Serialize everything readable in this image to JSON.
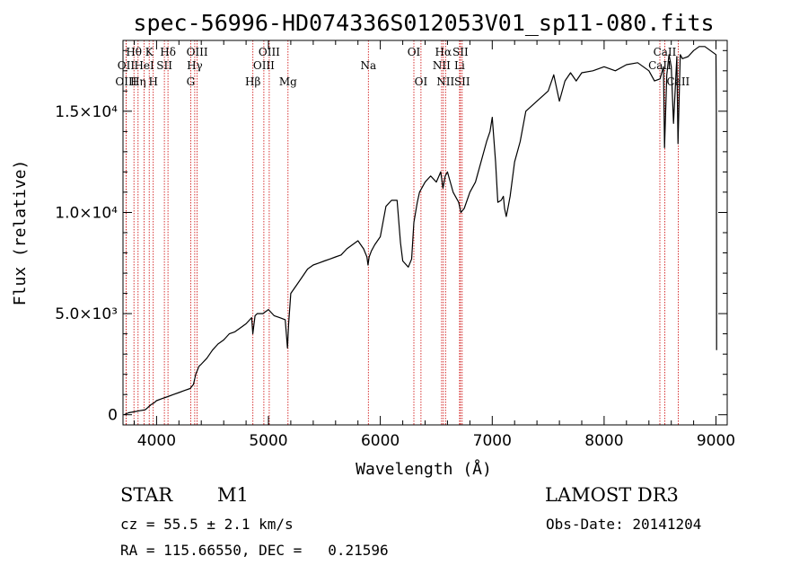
{
  "chart_data": {
    "type": "line",
    "title": "spec-56996-HD074336S012053V01_sp11-080.fits",
    "xlabel": "Wavelength (Å)",
    "ylabel": "Flux (relative)",
    "xlim": [
      3700,
      9100
    ],
    "ylim": [
      -500,
      18500
    ],
    "x_ticks": [
      {
        "value": 4000,
        "label": "4000"
      },
      {
        "value": 5000,
        "label": "5000"
      },
      {
        "value": 6000,
        "label": "6000"
      },
      {
        "value": 7000,
        "label": "7000"
      },
      {
        "value": 8000,
        "label": "8000"
      },
      {
        "value": 9000,
        "label": "9000"
      }
    ],
    "y_ticks": [
      {
        "value": 0,
        "label": "0"
      },
      {
        "value": 5000,
        "label": "5.0×10³"
      },
      {
        "value": 10000,
        "label": "1.0×10⁴"
      },
      {
        "value": 15000,
        "label": "1.5×10⁴"
      }
    ],
    "series": [
      {
        "x": [
          3710,
          3750,
          3800,
          3850,
          3900,
          3950,
          3980,
          4000,
          4050,
          4100,
          4150,
          4200,
          4250,
          4300,
          4330,
          4350,
          4380,
          4400,
          4450,
          4500,
          4550,
          4600,
          4650,
          4700,
          4750,
          4800,
          4850,
          4860,
          4880,
          4900,
          4950,
          5000,
          5050,
          5100,
          5150,
          5170,
          5180,
          5200,
          5250,
          5300,
          5350,
          5400,
          5450,
          5500,
          5550,
          5600,
          5650,
          5700,
          5750,
          5800,
          5850,
          5880,
          5890,
          5900,
          5920,
          5950,
          6000,
          6050,
          6100,
          6150,
          6180,
          6200,
          6250,
          6280,
          6300,
          6330,
          6350,
          6400,
          6450,
          6500,
          6540,
          6560,
          6580,
          6600,
          6650,
          6700,
          6720,
          6750,
          6800,
          6850,
          6900,
          6950,
          6980,
          7000,
          7030,
          7050,
          7080,
          7100,
          7110,
          7125,
          7140,
          7160,
          7200,
          7250,
          7300,
          7400,
          7500,
          7550,
          7600,
          7650,
          7700,
          7750,
          7800,
          7900,
          8000,
          8100,
          8200,
          8300,
          8400,
          8450,
          8500,
          8530,
          8540,
          8560,
          8580,
          8600,
          8620,
          8650,
          8660,
          8680,
          8700,
          8750,
          8800,
          8850,
          8900,
          8950,
          9000,
          9003,
          9005
        ],
        "y": [
          0,
          100,
          150,
          200,
          250,
          500,
          600,
          700,
          800,
          900,
          1000,
          1100,
          1200,
          1300,
          1500,
          2000,
          2400,
          2500,
          2800,
          3200,
          3500,
          3700,
          4000,
          4100,
          4300,
          4500,
          4800,
          4000,
          4900,
          5000,
          5000,
          5200,
          4900,
          4800,
          4700,
          3300,
          4500,
          6000,
          6400,
          6800,
          7200,
          7400,
          7500,
          7600,
          7700,
          7800,
          7900,
          8200,
          8400,
          8600,
          8200,
          7800,
          7400,
          7800,
          8100,
          8400,
          8800,
          10300,
          10600,
          10600,
          8500,
          7600,
          7300,
          7700,
          9500,
          10500,
          11000,
          11500,
          11800,
          11500,
          12000,
          11200,
          11800,
          12000,
          11000,
          10500,
          10000,
          10200,
          11000,
          11500,
          12500,
          13500,
          14000,
          14700,
          12500,
          10500,
          10600,
          10800,
          10200,
          9800,
          10200,
          10800,
          12500,
          13500,
          15000,
          15500,
          16000,
          16800,
          15500,
          16500,
          16900,
          16500,
          16900,
          17000,
          17200,
          17000,
          17300,
          17400,
          17000,
          16500,
          16600,
          17200,
          13200,
          16800,
          17800,
          17200,
          14400,
          17700,
          13400,
          17800,
          17600,
          17700,
          18000,
          18200,
          18200,
          18000,
          17800,
          15000,
          3200
        ]
      }
    ],
    "spectral_lines": [
      {
        "label": "Hθ",
        "x": 3798,
        "row": 1
      },
      {
        "label": "OII",
        "x": 3727,
        "row": 2
      },
      {
        "label": "OIII",
        "x": 3727,
        "row": 3
      },
      {
        "label": "K",
        "x": 3934,
        "row": 1
      },
      {
        "label": "HeI",
        "x": 3889,
        "row": 2
      },
      {
        "label": "Hη",
        "x": 3835,
        "row": 3
      },
      {
        "label": "SII",
        "x": 4070,
        "row": 2
      },
      {
        "label": "H",
        "x": 3970,
        "row": 3
      },
      {
        "label": "Hδ",
        "x": 4102,
        "row": 1
      },
      {
        "label": "OIII",
        "x": 4363,
        "row": 1
      },
      {
        "label": "Hγ",
        "x": 4341,
        "row": 2
      },
      {
        "label": "G",
        "x": 4305,
        "row": 3
      },
      {
        "label": "OIII",
        "x": 5007,
        "row": 1
      },
      {
        "label": "OIII",
        "x": 4959,
        "row": 2
      },
      {
        "label": "Hβ",
        "x": 4861,
        "row": 3
      },
      {
        "label": "Mg",
        "x": 5175,
        "row": 3
      },
      {
        "label": "Na",
        "x": 5893,
        "row": 2
      },
      {
        "label": "OI",
        "x": 6300,
        "row": 1
      },
      {
        "label": "OI",
        "x": 6363,
        "row": 3
      },
      {
        "label": "Hα",
        "x": 6563,
        "row": 1
      },
      {
        "label": "NII",
        "x": 6548,
        "row": 2
      },
      {
        "label": "NII",
        "x": 6583,
        "row": 3
      },
      {
        "label": "SII",
        "x": 6716,
        "row": 1
      },
      {
        "label": "Li",
        "x": 6708,
        "row": 2
      },
      {
        "label": "SII",
        "x": 6731,
        "row": 3
      },
      {
        "label": "CaII",
        "x": 8542,
        "row": 1
      },
      {
        "label": "CaII",
        "x": 8498,
        "row": 2
      },
      {
        "label": "CaII",
        "x": 8662,
        "row": 3
      }
    ],
    "line_color": "#000000",
    "marker_color": "#cc0000",
    "grid": false
  },
  "info": {
    "object_class": "STAR",
    "subclass": "M1",
    "survey": "LAMOST DR3",
    "cz": "cz = 55.5 ± 2.1 km/s",
    "obs_date": "Obs-Date: 20141204",
    "coords": "RA = 115.66550, DEC =   0.21596"
  }
}
